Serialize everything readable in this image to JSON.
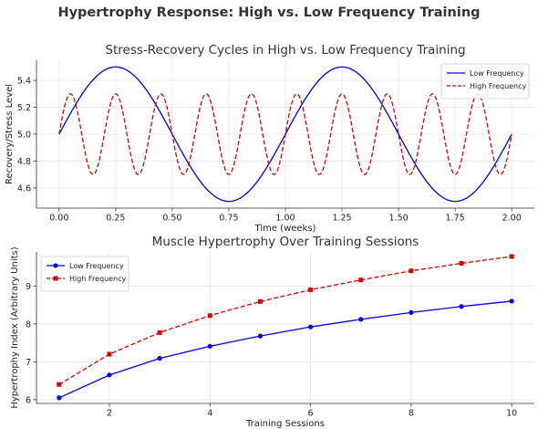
{
  "figure": {
    "title": "Hypertrophy Response: High vs. Low Frequency Training",
    "colors": {
      "low": "#0000ee",
      "high": "#dd0000"
    }
  },
  "chart_data": [
    {
      "type": "line",
      "title": "Stress-Recovery Cycles in High vs. Low Frequency Training",
      "xlabel": "Time (weeks)",
      "ylabel": "Recovery/Stress Level",
      "xlim": [
        -0.1,
        2.1
      ],
      "ylim": [
        4.45,
        5.55
      ],
      "xticks": [
        0.0,
        0.25,
        0.5,
        0.75,
        1.0,
        1.25,
        1.5,
        1.75,
        2.0
      ],
      "xtick_labels": [
        "0.00",
        "0.25",
        "0.50",
        "0.75",
        "1.00",
        "1.25",
        "1.50",
        "1.75",
        "2.00"
      ],
      "yticks": [
        4.6,
        4.8,
        5.0,
        5.2,
        5.4
      ],
      "ytick_labels": [
        "4.6",
        "4.8",
        "5.0",
        "5.2",
        "5.4"
      ],
      "legend": "upper-right",
      "grid": true,
      "series": [
        {
          "name": "Low Frequency",
          "style": "solid",
          "color": "#0000ee",
          "function": "5 + 0.5*sin(2*pi*t)",
          "x_range": [
            0,
            2
          ],
          "key_points": {
            "x": [
              0,
              0.25,
              0.5,
              0.75,
              1.0,
              1.25,
              1.5,
              1.75,
              2.0
            ],
            "y": [
              5.0,
              5.5,
              5.0,
              4.5,
              5.0,
              5.5,
              5.0,
              4.5,
              5.0
            ]
          }
        },
        {
          "name": "High Frequency",
          "style": "dashed",
          "color": "#dd0000",
          "function": "5 + 0.3*sin(10*pi*t)",
          "x_range": [
            0,
            2
          ],
          "key_points": {
            "x": [
              0,
              0.05,
              0.1,
              0.15,
              0.2
            ],
            "y": [
              5.0,
              5.3,
              5.0,
              4.7,
              5.0
            ]
          }
        }
      ]
    },
    {
      "type": "line",
      "title": "Muscle Hypertrophy Over Training Sessions",
      "xlabel": "Training Sessions",
      "ylabel": "Hypertrophy Index (Arbitrary Units)",
      "xlim": [
        0.55,
        10.45
      ],
      "ylim": [
        5.9,
        9.9
      ],
      "xticks": [
        2,
        4,
        6,
        8,
        10
      ],
      "xtick_labels": [
        "2",
        "4",
        "6",
        "8",
        "10"
      ],
      "yticks": [
        6,
        7,
        8,
        9
      ],
      "ytick_labels": [
        "6",
        "7",
        "8",
        "9"
      ],
      "legend": "upper-left",
      "grid": true,
      "x": [
        1,
        2,
        3,
        4,
        5,
        6,
        7,
        8,
        9,
        10
      ],
      "series": [
        {
          "name": "Low Frequency",
          "style": "solid",
          "marker": "circle",
          "color": "#0000ee",
          "values": [
            6.05,
            6.65,
            7.09,
            7.41,
            7.68,
            7.92,
            8.12,
            8.3,
            8.46,
            8.6
          ]
        },
        {
          "name": "High Frequency",
          "style": "dashed",
          "marker": "square",
          "color": "#dd0000",
          "values": [
            6.4,
            7.2,
            7.77,
            8.22,
            8.59,
            8.9,
            9.16,
            9.4,
            9.6,
            9.78
          ]
        }
      ]
    }
  ]
}
